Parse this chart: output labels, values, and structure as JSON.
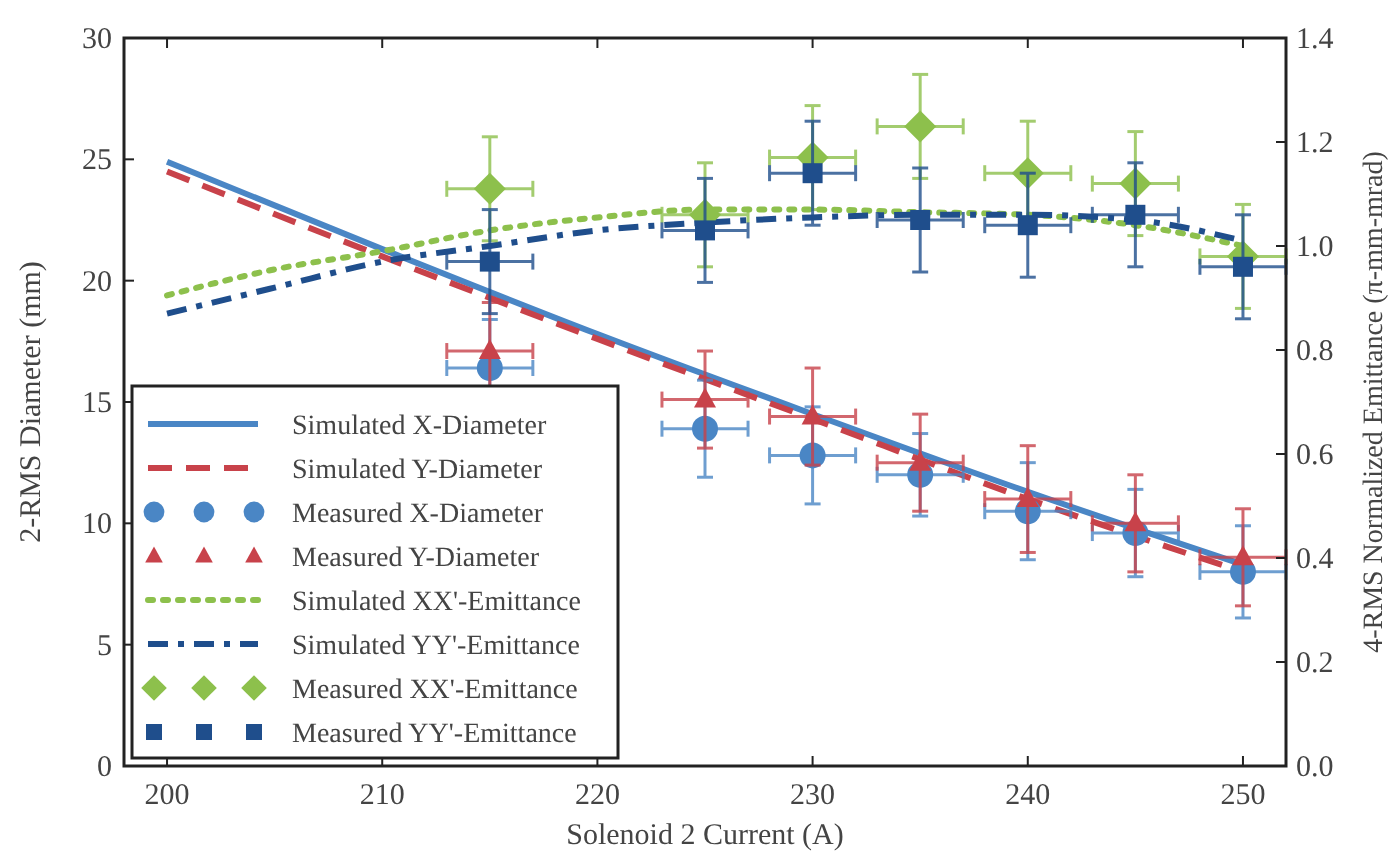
{
  "chart_data": {
    "type": "scatter",
    "xlabel": "Solenoid 2 Current (A)",
    "ylabel": "2-RMS Diameter (mm)",
    "y2label": "4-RMS Normalized Emittance (π-mm-mrad)",
    "xlim": [
      198,
      252
    ],
    "xticks": [
      200,
      210,
      220,
      230,
      240,
      250
    ],
    "ylim": [
      0,
      30
    ],
    "yticks": [
      0,
      5,
      10,
      15,
      20,
      25,
      30
    ],
    "y2lim": [
      0,
      1.4
    ],
    "y2ticks": [
      {
        "value": 0,
        "label": "0.0"
      },
      {
        "value": 0.2,
        "label": "0.2"
      },
      {
        "value": 0.4,
        "label": "0.4"
      },
      {
        "value": 0.6,
        "label": "0.6"
      },
      {
        "value": 0.8,
        "label": "0.8"
      },
      {
        "value": 1,
        "label": "1.0"
      },
      {
        "value": 1.2,
        "label": "1.2"
      },
      {
        "value": 1.4,
        "label": "1.4"
      }
    ],
    "grid": false,
    "legend": "bottom left",
    "series": [
      {
        "name": "Simulated X-Diameter",
        "type": "line",
        "line_style": "solid",
        "marker": "none",
        "color": "#4a86c5",
        "x": [
          200,
          210,
          220,
          230,
          240,
          250
        ],
        "values": [
          24.9,
          21.3,
          17.8,
          14.5,
          11.3,
          8.3
        ]
      },
      {
        "name": "Simulated Y-Diameter",
        "type": "line",
        "line_style": "dashed",
        "marker": "none",
        "color": "#c8424a",
        "x": [
          200,
          210,
          220,
          230,
          240,
          250
        ],
        "values": [
          24.5,
          21.0,
          17.6,
          14.3,
          11.0,
          8.0
        ]
      },
      {
        "name": "Measured X-Diameter",
        "marker": "circle",
        "color": "#4a86c5",
        "x": [
          215,
          225,
          230,
          235,
          240,
          245,
          250
        ],
        "values": [
          16.4,
          13.9,
          12.8,
          12.0,
          10.5,
          9.6,
          8.0
        ],
        "errors": [
          2,
          2,
          2,
          1.7,
          2,
          1.8,
          1.9
        ],
        "xerrors": [
          2,
          2,
          2,
          2,
          2,
          2,
          2
        ]
      },
      {
        "name": "Measured Y-Diameter",
        "marker": "triangle",
        "color": "#c8424a",
        "x": [
          215,
          225,
          230,
          235,
          240,
          245,
          250
        ],
        "values": [
          17.1,
          15.1,
          14.4,
          12.5,
          11.0,
          10.0,
          8.6
        ],
        "errors": [
          2,
          2,
          2,
          2,
          2.2,
          2,
          2
        ],
        "xerrors": [
          2,
          2,
          2,
          2,
          2,
          2,
          2
        ]
      },
      {
        "name": "Simulated XX'-Emittance",
        "type": "line",
        "line_style": "dotted",
        "marker": "none",
        "axis": "y2",
        "color": "#8dc04c",
        "x": [
          200,
          205,
          210,
          215,
          220,
          225,
          230,
          235,
          240,
          245,
          250
        ],
        "values": [
          0.905,
          0.955,
          0.99,
          1.03,
          1.055,
          1.07,
          1.07,
          1.065,
          1.06,
          1.04,
          1.0
        ]
      },
      {
        "name": "Simulated YY'-Emittance",
        "type": "line",
        "line_style": "dashdot",
        "marker": "none",
        "axis": "y2",
        "color": "#1f4e8c",
        "x": [
          200,
          205,
          210,
          215,
          220,
          225,
          230,
          235,
          240,
          245,
          250
        ],
        "values": [
          0.87,
          0.92,
          0.97,
          1.0,
          1.03,
          1.045,
          1.055,
          1.06,
          1.06,
          1.05,
          1.01
        ]
      },
      {
        "name": "Measured XX'-Emittance",
        "marker": "diamond",
        "axis": "y2",
        "color": "#8dc04c",
        "x": [
          215,
          225,
          230,
          235,
          240,
          245,
          250
        ],
        "values": [
          1.11,
          1.06,
          1.17,
          1.23,
          1.14,
          1.12,
          0.98
        ],
        "errors": [
          0.1,
          0.1,
          0.1,
          0.1,
          0.1,
          0.1,
          0.1
        ],
        "xerrors": [
          2,
          2,
          2,
          2,
          2,
          2,
          2
        ]
      },
      {
        "name": "Measured YY'-Emittance",
        "marker": "square",
        "axis": "y2",
        "color": "#1f4e8c",
        "x": [
          215,
          225,
          230,
          235,
          240,
          245,
          250
        ],
        "values": [
          0.97,
          1.03,
          1.14,
          1.05,
          1.04,
          1.06,
          0.96
        ],
        "errors": [
          0.1,
          0.1,
          0.1,
          0.1,
          0.1,
          0.1,
          0.1
        ],
        "xerrors": [
          2,
          2,
          2,
          2,
          2,
          2,
          2
        ]
      }
    ]
  }
}
